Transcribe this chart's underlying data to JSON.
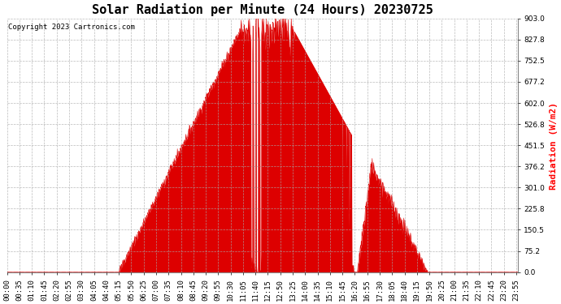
{
  "title": "Solar Radiation per Minute (24 Hours) 20230725",
  "copyright_text": "Copyright 2023 Cartronics.com",
  "ylabel": "Radiation (W/m2)",
  "yticks": [
    0.0,
    75.2,
    150.5,
    225.8,
    301.0,
    376.2,
    451.5,
    526.8,
    602.0,
    677.2,
    752.5,
    827.8,
    903.0
  ],
  "ymax": 903.0,
  "fill_color": "#dd0000",
  "line_color": "#dd0000",
  "dashed_zero_color": "#dd0000",
  "grid_color": "#aaaaaa",
  "bg_color": "#ffffff",
  "title_fontsize": 11,
  "label_fontsize": 8,
  "tick_fontsize": 6.5,
  "x_tick_interval_minutes": 35,
  "total_minutes": 1440,
  "sunrise_min": 315,
  "sunset_min": 1185,
  "peak_min": 750,
  "peak_val": 903.0
}
